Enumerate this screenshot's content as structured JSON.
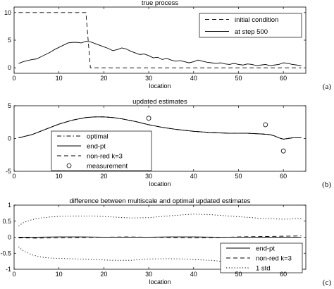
{
  "chart_data": [
    {
      "type": "line",
      "panel_label": "(a)",
      "title": "true process",
      "xlabel": "location",
      "ylabel": "",
      "xlim": [
        0,
        65
      ],
      "ylim": [
        -1,
        11
      ],
      "xticks": [
        0,
        10,
        20,
        30,
        40,
        50,
        60
      ],
      "yticks": [
        0,
        5,
        10
      ],
      "grid": false,
      "legend_position": "top-right",
      "series": [
        {
          "name": "initial condition",
          "style": "dashed",
          "x": [
            1,
            2,
            4,
            6,
            8,
            10,
            12,
            14,
            15,
            16,
            17,
            18,
            20,
            25,
            30,
            35,
            40,
            45,
            50,
            55,
            60,
            64
          ],
          "y": [
            10,
            10,
            10,
            10,
            10,
            10,
            10,
            10,
            10,
            10,
            0,
            0,
            0,
            0,
            0,
            0,
            0,
            0,
            0,
            0,
            0,
            0
          ]
        },
        {
          "name": "at step 500",
          "style": "solid",
          "x": [
            1,
            2,
            3,
            4,
            5,
            6,
            7,
            8,
            9,
            10,
            11,
            12,
            13,
            14,
            15,
            16,
            17,
            18,
            19,
            20,
            21,
            22,
            23,
            24,
            25,
            26,
            27,
            28,
            29,
            30,
            31,
            32,
            33,
            34,
            35,
            36,
            37,
            38,
            39,
            40,
            41,
            42,
            43,
            44,
            45,
            46,
            47,
            48,
            49,
            50,
            51,
            52,
            53,
            54,
            55,
            56,
            57,
            58,
            59,
            60,
            61,
            62,
            63,
            64
          ],
          "y": [
            0.8,
            1.1,
            1.3,
            1.5,
            1.6,
            2.0,
            2.4,
            2.8,
            3.3,
            3.7,
            4.1,
            4.5,
            4.6,
            4.6,
            4.5,
            4.8,
            4.7,
            4.4,
            4.1,
            3.8,
            3.5,
            3.1,
            3.3,
            3.6,
            3.4,
            3.0,
            2.7,
            2.4,
            2.5,
            2.2,
            1.8,
            1.9,
            1.5,
            1.7,
            1.4,
            1.2,
            1.3,
            1.1,
            0.9,
            1.1,
            1.4,
            1.2,
            1.0,
            0.9,
            0.8,
            0.9,
            0.7,
            0.6,
            0.8,
            0.6,
            0.5,
            0.7,
            0.6,
            0.4,
            0.5,
            0.6,
            0.4,
            0.5,
            0.6,
            0.9,
            0.8,
            0.6,
            0.5,
            0.4
          ]
        }
      ]
    },
    {
      "type": "line",
      "panel_label": "(b)",
      "title": "updated estimates",
      "xlabel": "location",
      "ylabel": "",
      "xlim": [
        0,
        65
      ],
      "ylim": [
        -5,
        5
      ],
      "xticks": [
        0,
        10,
        20,
        30,
        40,
        50,
        60
      ],
      "yticks": [
        -5,
        0,
        5
      ],
      "grid": false,
      "legend_position": "bottom-left",
      "series": [
        {
          "name": "optimal",
          "style": "dashdot",
          "x": [
            1,
            4,
            7,
            10,
            13,
            16,
            18,
            20,
            22,
            24,
            27,
            30,
            33,
            36,
            40,
            44,
            48,
            52,
            55,
            57,
            58,
            59,
            60,
            61,
            62,
            64
          ],
          "y": [
            0.1,
            0.6,
            1.4,
            2.2,
            2.8,
            3.2,
            3.3,
            3.3,
            3.2,
            3.0,
            2.6,
            2.1,
            1.7,
            1.4,
            1.1,
            0.9,
            0.8,
            0.8,
            0.7,
            0.6,
            0.4,
            0.1,
            -0.1,
            0.0,
            0.1,
            0.1
          ]
        },
        {
          "name": "end-pt",
          "style": "solid",
          "x": [
            1,
            4,
            7,
            10,
            13,
            16,
            18,
            20,
            22,
            24,
            27,
            30,
            33,
            36,
            40,
            44,
            48,
            52,
            55,
            57,
            58,
            59,
            60,
            61,
            62,
            64
          ],
          "y": [
            0.1,
            0.6,
            1.4,
            2.2,
            2.8,
            3.2,
            3.3,
            3.3,
            3.2,
            3.0,
            2.6,
            2.1,
            1.7,
            1.4,
            1.1,
            0.9,
            0.8,
            0.8,
            0.7,
            0.6,
            0.4,
            0.1,
            -0.1,
            0.0,
            0.1,
            0.1
          ]
        },
        {
          "name": "non-red k=3",
          "style": "dashed",
          "x": [
            1,
            4,
            7,
            10,
            13,
            16,
            18,
            20,
            22,
            24,
            27,
            30,
            33,
            36,
            40,
            44,
            48,
            52,
            55,
            57,
            58,
            59,
            60,
            61,
            62,
            64
          ],
          "y": [
            0.1,
            0.6,
            1.4,
            2.2,
            2.8,
            3.2,
            3.3,
            3.3,
            3.2,
            3.0,
            2.6,
            2.1,
            1.7,
            1.4,
            1.1,
            0.9,
            0.8,
            0.8,
            0.7,
            0.6,
            0.4,
            0.1,
            -0.1,
            0.0,
            0.1,
            0.1
          ]
        },
        {
          "name": "measurement",
          "style": "circle-markers",
          "x": [
            30,
            56,
            60
          ],
          "y": [
            3.1,
            2.1,
            -1.9
          ]
        }
      ]
    },
    {
      "type": "line",
      "panel_label": "(c)",
      "title": "difference between multiscale and optimal updated estimates",
      "xlabel": "location",
      "ylabel": "",
      "xlim": [
        0,
        65
      ],
      "ylim": [
        -1,
        1
      ],
      "xticks": [
        0,
        10,
        20,
        30,
        40,
        50,
        60
      ],
      "yticks": [
        -1,
        -0.5,
        0,
        0.5,
        1
      ],
      "grid": false,
      "legend_position": "bottom-right",
      "series": [
        {
          "name": "end-pt",
          "style": "solid",
          "x": [
            1,
            5,
            10,
            15,
            20,
            25,
            30,
            35,
            40,
            45,
            50,
            55,
            60,
            64
          ],
          "y": [
            0.0,
            0.0,
            0.01,
            0.01,
            0.0,
            0.0,
            0.0,
            0.01,
            0.01,
            0.0,
            0.0,
            0.0,
            0.0,
            0.0
          ]
        },
        {
          "name": "non-red k=3",
          "style": "dashed",
          "x": [
            1,
            5,
            10,
            15,
            20,
            25,
            30,
            35,
            40,
            45,
            50,
            55,
            60,
            64
          ],
          "y": [
            -0.02,
            -0.03,
            -0.02,
            -0.01,
            0.0,
            0.01,
            0.0,
            -0.01,
            -0.02,
            -0.01,
            0.01,
            0.02,
            0.03,
            0.04
          ]
        },
        {
          "name": "1 std",
          "style": "dotted",
          "x": [
            1,
            2,
            4,
            6,
            8,
            10,
            14,
            18,
            22,
            26,
            30,
            34,
            38,
            40,
            44,
            48,
            52,
            56,
            60,
            64
          ],
          "y": [
            0.35,
            0.45,
            0.55,
            0.6,
            0.63,
            0.65,
            0.66,
            0.66,
            0.63,
            0.6,
            0.61,
            0.66,
            0.7,
            0.72,
            0.7,
            0.66,
            0.62,
            0.58,
            0.56,
            0.58
          ]
        },
        {
          "name": "",
          "style": "dotted",
          "x": [
            1,
            2,
            4,
            6,
            8,
            10,
            14,
            18,
            22,
            26,
            30,
            34,
            38,
            40,
            44,
            48,
            52,
            56,
            60,
            64
          ],
          "y": [
            -0.3,
            -0.42,
            -0.55,
            -0.62,
            -0.65,
            -0.66,
            -0.68,
            -0.7,
            -0.72,
            -0.72,
            -0.68,
            -0.67,
            -0.68,
            -0.7,
            -0.72,
            -0.78,
            -0.8,
            -0.8,
            -0.78,
            -0.75
          ]
        }
      ]
    }
  ]
}
